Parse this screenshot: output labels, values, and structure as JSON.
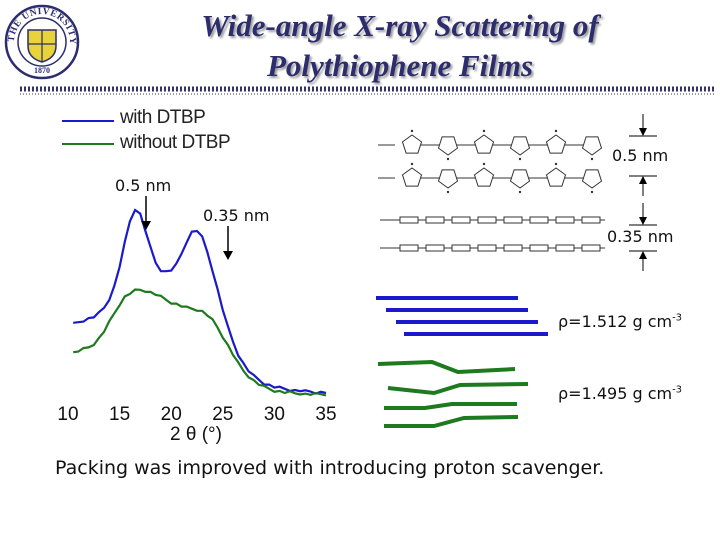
{
  "slide": {
    "title_line1": "Wide-angle X-ray Scattering of",
    "title_line2": "Polythiophene Films",
    "footer": "Packing was improved with introducing proton scavenger."
  },
  "logo": {
    "top_text": "THE UNIVERSITY OF AKRON",
    "year": "1870"
  },
  "colors": {
    "title": "#2c2c6e",
    "with_dtbp": "#1a1acc",
    "without_dtbp": "#1e7a1e",
    "rule_dark": "#33336a"
  },
  "annotations": {
    "peak_05": "0.5 nm",
    "peak_035": "0.35 nm",
    "right_05": "0.5 nm",
    "right_035": "0.35 nm",
    "density_top": "ρ=1.512 g cm",
    "density_bottom": "ρ=1.495 g cm",
    "density_exp": "-3"
  },
  "chart_data": {
    "type": "line",
    "xlabel": "2 θ (°)",
    "ylabel": "",
    "xticks": [
      "10",
      "15",
      "20",
      "25",
      "30",
      "35"
    ],
    "xlim": [
      10,
      35
    ],
    "grid": false,
    "legend_position": "top-left",
    "series": [
      {
        "name": "with DTBP",
        "color": "#1a1acc",
        "x": [
          10.5,
          11,
          11.5,
          12,
          12.5,
          13,
          13.5,
          14,
          14.5,
          15,
          15.5,
          16,
          16.5,
          17,
          17.5,
          18,
          18.5,
          19,
          19.5,
          20,
          20.5,
          21,
          21.5,
          22,
          22.5,
          23,
          23.5,
          24,
          24.5,
          25,
          25.5,
          26,
          26.5,
          27,
          27.5,
          28,
          28.5,
          29,
          29.5,
          30,
          30.5,
          31,
          31.5,
          32,
          32.5,
          33,
          33.5,
          34,
          34.5,
          35
        ],
        "y": [
          0.4,
          0.41,
          0.42,
          0.43,
          0.44,
          0.46,
          0.49,
          0.54,
          0.61,
          0.72,
          0.85,
          0.97,
          1.04,
          1.01,
          0.92,
          0.82,
          0.74,
          0.7,
          0.69,
          0.7,
          0.73,
          0.79,
          0.86,
          0.91,
          0.92,
          0.88,
          0.8,
          0.7,
          0.59,
          0.48,
          0.38,
          0.3,
          0.23,
          0.18,
          0.14,
          0.11,
          0.09,
          0.07,
          0.06,
          0.05,
          0.045,
          0.04,
          0.035,
          0.03,
          0.03,
          0.025,
          0.025,
          0.02,
          0.02,
          0.02
        ]
      },
      {
        "name": "without DTBP",
        "color": "#1e7a1e",
        "x": [
          10.5,
          11,
          11.5,
          12,
          12.5,
          13,
          13.5,
          14,
          14.5,
          15,
          15.5,
          16,
          16.5,
          17,
          17.5,
          18,
          18.5,
          19,
          19.5,
          20,
          20.5,
          21,
          21.5,
          22,
          22.5,
          23,
          23.5,
          24,
          24.5,
          25,
          25.5,
          26,
          26.5,
          27,
          27.5,
          28,
          28.5,
          29,
          29.5,
          30,
          30.5,
          31,
          31.5,
          32,
          32.5,
          33,
          33.5,
          34,
          34.5,
          35
        ],
        "y": [
          0.24,
          0.25,
          0.26,
          0.27,
          0.29,
          0.32,
          0.36,
          0.41,
          0.46,
          0.51,
          0.55,
          0.57,
          0.585,
          0.59,
          0.585,
          0.575,
          0.565,
          0.55,
          0.535,
          0.52,
          0.51,
          0.5,
          0.49,
          0.485,
          0.48,
          0.47,
          0.45,
          0.42,
          0.38,
          0.33,
          0.28,
          0.23,
          0.18,
          0.14,
          0.11,
          0.085,
          0.065,
          0.05,
          0.04,
          0.03,
          0.025,
          0.02,
          0.02,
          0.015,
          0.015,
          0.01,
          0.01,
          0.01,
          0.01,
          0.01
        ]
      }
    ]
  }
}
